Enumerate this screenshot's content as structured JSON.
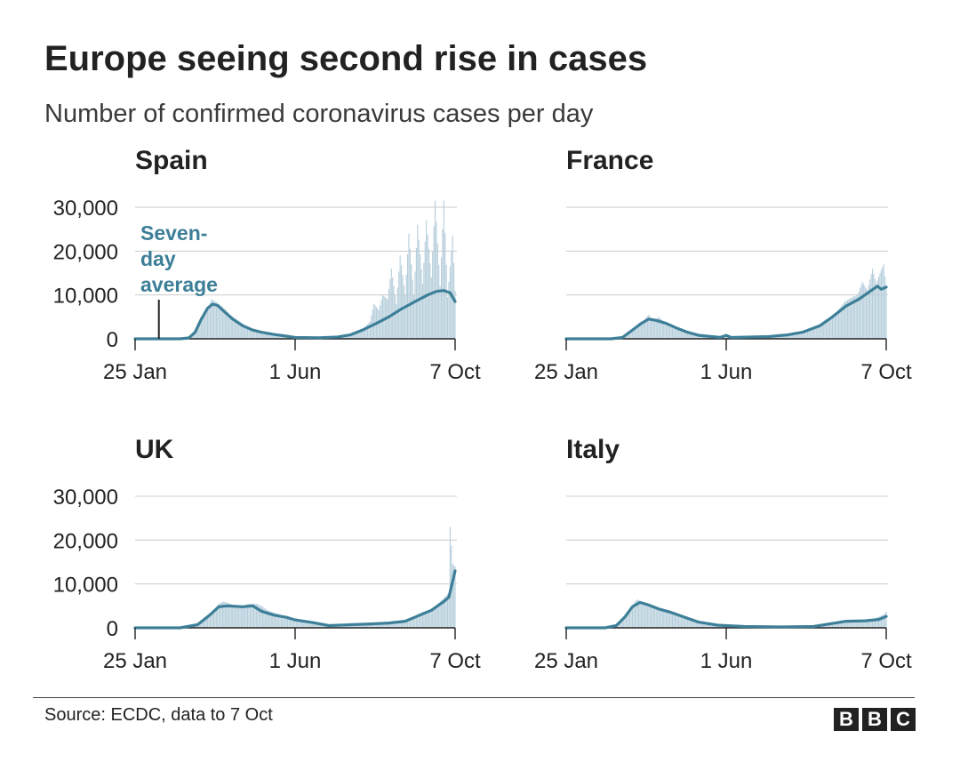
{
  "title": "Europe seeing second rise in cases",
  "subtitle": "Number of confirmed coronavirus cases per day",
  "source": "Source: ECDC, data to 7 Oct",
  "logo": [
    "B",
    "B",
    "C"
  ],
  "colors": {
    "line": "#3d7f98",
    "bars": "#b5cedb",
    "grid": "#cccccc",
    "axis": "#222222",
    "annotation": "#3d7f98"
  },
  "annotation": {
    "panel": 0,
    "lines": [
      "Seven-",
      "day",
      "average"
    ],
    "x": "2020-02-13"
  },
  "chart_data": [
    {
      "type": "bar",
      "title": "Spain",
      "xlabel": "",
      "ylabel": "",
      "y_ticks": [
        "0",
        "10,000",
        "20,000",
        "30,000"
      ],
      "x_ticks": [
        "25 Jan",
        "1 Jun",
        "7 Oct"
      ],
      "ylim": [
        0,
        30000
      ],
      "grid": true,
      "series": [
        {
          "kind": "bar",
          "points": [
            [
              "2020-03-01",
              0
            ],
            [
              "2020-03-10",
              500
            ],
            [
              "2020-03-15",
              2500
            ],
            [
              "2020-03-20",
              5000
            ],
            [
              "2020-03-23",
              6500
            ],
            [
              "2020-03-26",
              9000
            ],
            [
              "2020-03-29",
              8500
            ],
            [
              "2020-04-01",
              8000
            ],
            [
              "2020-04-05",
              7000
            ],
            [
              "2020-04-10",
              5500
            ],
            [
              "2020-04-15",
              4500
            ],
            [
              "2020-04-20",
              3500
            ],
            [
              "2020-04-25",
              2500
            ],
            [
              "2020-05-01",
              1500
            ],
            [
              "2020-05-10",
              1000
            ],
            [
              "2020-05-20",
              600
            ],
            [
              "2020-06-01",
              400
            ],
            [
              "2020-06-15",
              300
            ],
            [
              "2020-07-01",
              400
            ],
            [
              "2020-07-15",
              900
            ],
            [
              "2020-07-25",
              2000
            ],
            [
              "2020-07-31",
              4000
            ],
            [
              "2020-08-03",
              8000
            ],
            [
              "2020-08-07",
              6500
            ],
            [
              "2020-08-10",
              10000
            ],
            [
              "2020-08-14",
              9000
            ],
            [
              "2020-08-17",
              16000
            ],
            [
              "2020-08-21",
              8000
            ],
            [
              "2020-08-24",
              19000
            ],
            [
              "2020-08-28",
              10000
            ],
            [
              "2020-08-31",
              24000
            ],
            [
              "2020-09-04",
              10000
            ],
            [
              "2020-09-07",
              26000
            ],
            [
              "2020-09-11",
              12500
            ],
            [
              "2020-09-14",
              27000
            ],
            [
              "2020-09-18",
              14000
            ],
            [
              "2020-09-21",
              31500
            ],
            [
              "2020-09-25",
              12000
            ],
            [
              "2020-09-28",
              31500
            ],
            [
              "2020-10-01",
              9500
            ],
            [
              "2020-10-05",
              23500
            ],
            [
              "2020-10-07",
              11000
            ]
          ]
        },
        {
          "kind": "line",
          "name": "Seven-day average",
          "points": [
            [
              "2020-01-25",
              0
            ],
            [
              "2020-03-01",
              0
            ],
            [
              "2020-03-08",
              200
            ],
            [
              "2020-03-13",
              1500
            ],
            [
              "2020-03-18",
              4500
            ],
            [
              "2020-03-23",
              7000
            ],
            [
              "2020-03-27",
              7900
            ],
            [
              "2020-03-31",
              7600
            ],
            [
              "2020-04-05",
              6300
            ],
            [
              "2020-04-12",
              4500
            ],
            [
              "2020-04-20",
              3000
            ],
            [
              "2020-04-28",
              2000
            ],
            [
              "2020-05-05",
              1500
            ],
            [
              "2020-05-15",
              1000
            ],
            [
              "2020-05-25",
              600
            ],
            [
              "2020-06-01",
              300
            ],
            [
              "2020-06-20",
              250
            ],
            [
              "2020-07-05",
              400
            ],
            [
              "2020-07-15",
              900
            ],
            [
              "2020-07-25",
              2000
            ],
            [
              "2020-08-05",
              3500
            ],
            [
              "2020-08-15",
              5000
            ],
            [
              "2020-08-25",
              6800
            ],
            [
              "2020-09-05",
              8500
            ],
            [
              "2020-09-15",
              10000
            ],
            [
              "2020-09-22",
              10800
            ],
            [
              "2020-09-28",
              11000
            ],
            [
              "2020-10-03",
              10500
            ],
            [
              "2020-10-07",
              8500
            ]
          ]
        }
      ]
    },
    {
      "type": "bar",
      "title": "France",
      "xlabel": "",
      "ylabel": "",
      "y_ticks": [
        "0",
        "10,000",
        "20,000",
        "30,000"
      ],
      "x_ticks": [
        "25 Jan",
        "1 Jun",
        "7 Oct"
      ],
      "ylim": [
        0,
        30000
      ],
      "grid": true,
      "series": [
        {
          "kind": "bar",
          "points": [
            [
              "2020-03-01",
              0
            ],
            [
              "2020-03-10",
              400
            ],
            [
              "2020-03-18",
              2000
            ],
            [
              "2020-03-25",
              3500
            ],
            [
              "2020-03-28",
              4500
            ],
            [
              "2020-03-31",
              5500
            ],
            [
              "2020-04-04",
              4000
            ],
            [
              "2020-04-08",
              5000
            ],
            [
              "2020-04-12",
              4000
            ],
            [
              "2020-04-16",
              3500
            ],
            [
              "2020-04-22",
              2500
            ],
            [
              "2020-05-01",
              1500
            ],
            [
              "2020-05-15",
              1000
            ],
            [
              "2020-06-01",
              600
            ],
            [
              "2020-06-15",
              400
            ],
            [
              "2020-07-01",
              600
            ],
            [
              "2020-07-15",
              800
            ],
            [
              "2020-07-31",
              1500
            ],
            [
              "2020-08-10",
              2500
            ],
            [
              "2020-08-20",
              4000
            ],
            [
              "2020-08-28",
              6000
            ],
            [
              "2020-09-04",
              8500
            ],
            [
              "2020-09-10",
              9500
            ],
            [
              "2020-09-14",
              10000
            ],
            [
              "2020-09-18",
              13000
            ],
            [
              "2020-09-22",
              11000
            ],
            [
              "2020-09-26",
              16000
            ],
            [
              "2020-09-29",
              12500
            ],
            [
              "2020-10-02",
              15000
            ],
            [
              "2020-10-05",
              17000
            ],
            [
              "2020-10-07",
              11500
            ]
          ]
        },
        {
          "kind": "line",
          "name": "Seven-day average",
          "points": [
            [
              "2020-01-25",
              0
            ],
            [
              "2020-03-01",
              0
            ],
            [
              "2020-03-10",
              300
            ],
            [
              "2020-03-18",
              2000
            ],
            [
              "2020-03-25",
              3500
            ],
            [
              "2020-03-31",
              4500
            ],
            [
              "2020-04-06",
              4200
            ],
            [
              "2020-04-14",
              3500
            ],
            [
              "2020-04-22",
              2500
            ],
            [
              "2020-05-01",
              1500
            ],
            [
              "2020-05-10",
              800
            ],
            [
              "2020-05-20",
              500
            ],
            [
              "2020-05-27",
              300
            ],
            [
              "2020-06-01",
              800
            ],
            [
              "2020-06-05",
              300
            ],
            [
              "2020-06-20",
              400
            ],
            [
              "2020-07-05",
              500
            ],
            [
              "2020-07-20",
              900
            ],
            [
              "2020-08-01",
              1500
            ],
            [
              "2020-08-15",
              3000
            ],
            [
              "2020-08-25",
              5000
            ],
            [
              "2020-09-05",
              7500
            ],
            [
              "2020-09-15",
              9000
            ],
            [
              "2020-09-25",
              11000
            ],
            [
              "2020-09-30",
              12000
            ],
            [
              "2020-10-03",
              11300
            ],
            [
              "2020-10-07",
              11800
            ]
          ]
        }
      ]
    },
    {
      "type": "bar",
      "title": "UK",
      "xlabel": "",
      "ylabel": "",
      "y_ticks": [
        "0",
        "10,000",
        "20,000",
        "30,000"
      ],
      "x_ticks": [
        "25 Jan",
        "1 Jun",
        "7 Oct"
      ],
      "ylim": [
        0,
        30000
      ],
      "grid": true,
      "series": [
        {
          "kind": "bar",
          "points": [
            [
              "2020-03-01",
              0
            ],
            [
              "2020-03-15",
              1000
            ],
            [
              "2020-03-25",
              3000
            ],
            [
              "2020-04-01",
              5500
            ],
            [
              "2020-04-05",
              6000
            ],
            [
              "2020-04-10",
              5500
            ],
            [
              "2020-04-15",
              5000
            ],
            [
              "2020-04-20",
              5000
            ],
            [
              "2020-04-25",
              5500
            ],
            [
              "2020-05-01",
              5500
            ],
            [
              "2020-05-05",
              5000
            ],
            [
              "2020-05-10",
              4000
            ],
            [
              "2020-05-20",
              3000
            ],
            [
              "2020-06-01",
              2000
            ],
            [
              "2020-06-15",
              1200
            ],
            [
              "2020-07-01",
              700
            ],
            [
              "2020-07-15",
              700
            ],
            [
              "2020-08-01",
              900
            ],
            [
              "2020-08-15",
              1200
            ],
            [
              "2020-08-28",
              1500
            ],
            [
              "2020-09-10",
              3500
            ],
            [
              "2020-09-20",
              4500
            ],
            [
              "2020-09-27",
              6500
            ],
            [
              "2020-10-02",
              8000
            ],
            [
              "2020-10-03",
              23000
            ],
            [
              "2020-10-05",
              14500
            ],
            [
              "2020-10-07",
              14000
            ]
          ]
        },
        {
          "kind": "line",
          "name": "Seven-day average",
          "points": [
            [
              "2020-01-25",
              0
            ],
            [
              "2020-03-01",
              0
            ],
            [
              "2020-03-15",
              700
            ],
            [
              "2020-03-25",
              3000
            ],
            [
              "2020-04-01",
              4800
            ],
            [
              "2020-04-08",
              5000
            ],
            [
              "2020-04-20",
              4800
            ],
            [
              "2020-04-28",
              5000
            ],
            [
              "2020-05-05",
              3800
            ],
            [
              "2020-05-15",
              2900
            ],
            [
              "2020-05-25",
              2400
            ],
            [
              "2020-06-01",
              1800
            ],
            [
              "2020-06-15",
              1200
            ],
            [
              "2020-06-28",
              500
            ],
            [
              "2020-07-15",
              700
            ],
            [
              "2020-08-01",
              900
            ],
            [
              "2020-08-15",
              1100
            ],
            [
              "2020-08-28",
              1500
            ],
            [
              "2020-09-08",
              2800
            ],
            [
              "2020-09-18",
              4000
            ],
            [
              "2020-09-28",
              6000
            ],
            [
              "2020-10-02",
              7000
            ],
            [
              "2020-10-07",
              13000
            ]
          ]
        }
      ]
    },
    {
      "type": "bar",
      "title": "Italy",
      "xlabel": "",
      "ylabel": "",
      "y_ticks": [
        "0",
        "10,000",
        "20,000",
        "30,000"
      ],
      "x_ticks": [
        "25 Jan",
        "1 Jun",
        "7 Oct"
      ],
      "ylim": [
        0,
        30000
      ],
      "grid": true,
      "series": [
        {
          "kind": "bar",
          "points": [
            [
              "2020-03-01",
              100
            ],
            [
              "2020-03-10",
              1500
            ],
            [
              "2020-03-15",
              3500
            ],
            [
              "2020-03-20",
              6000
            ],
            [
              "2020-03-22",
              6500
            ],
            [
              "2020-03-26",
              5500
            ],
            [
              "2020-03-30",
              5000
            ],
            [
              "2020-04-04",
              4500
            ],
            [
              "2020-04-10",
              4000
            ],
            [
              "2020-04-15",
              3500
            ],
            [
              "2020-04-20",
              3000
            ],
            [
              "2020-04-30",
              2000
            ],
            [
              "2020-05-10",
              1000
            ],
            [
              "2020-05-25",
              500
            ],
            [
              "2020-06-15",
              300
            ],
            [
              "2020-07-15",
              300
            ],
            [
              "2020-08-10",
              500
            ],
            [
              "2020-08-25",
              1200
            ],
            [
              "2020-09-05",
              1500
            ],
            [
              "2020-09-15",
              1600
            ],
            [
              "2020-09-25",
              1800
            ],
            [
              "2020-10-05",
              3000
            ],
            [
              "2020-10-07",
              3700
            ]
          ]
        },
        {
          "kind": "line",
          "name": "Seven-day average",
          "points": [
            [
              "2020-01-25",
              0
            ],
            [
              "2020-02-25",
              0
            ],
            [
              "2020-03-05",
              500
            ],
            [
              "2020-03-12",
              2500
            ],
            [
              "2020-03-18",
              4800
            ],
            [
              "2020-03-24",
              5800
            ],
            [
              "2020-03-30",
              5300
            ],
            [
              "2020-04-08",
              4300
            ],
            [
              "2020-04-18",
              3500
            ],
            [
              "2020-04-28",
              2500
            ],
            [
              "2020-05-10",
              1300
            ],
            [
              "2020-05-25",
              600
            ],
            [
              "2020-06-15",
              300
            ],
            [
              "2020-07-15",
              200
            ],
            [
              "2020-08-10",
              300
            ],
            [
              "2020-08-25",
              1000
            ],
            [
              "2020-09-05",
              1500
            ],
            [
              "2020-09-20",
              1600
            ],
            [
              "2020-10-01",
              1900
            ],
            [
              "2020-10-07",
              2600
            ]
          ]
        }
      ]
    }
  ]
}
